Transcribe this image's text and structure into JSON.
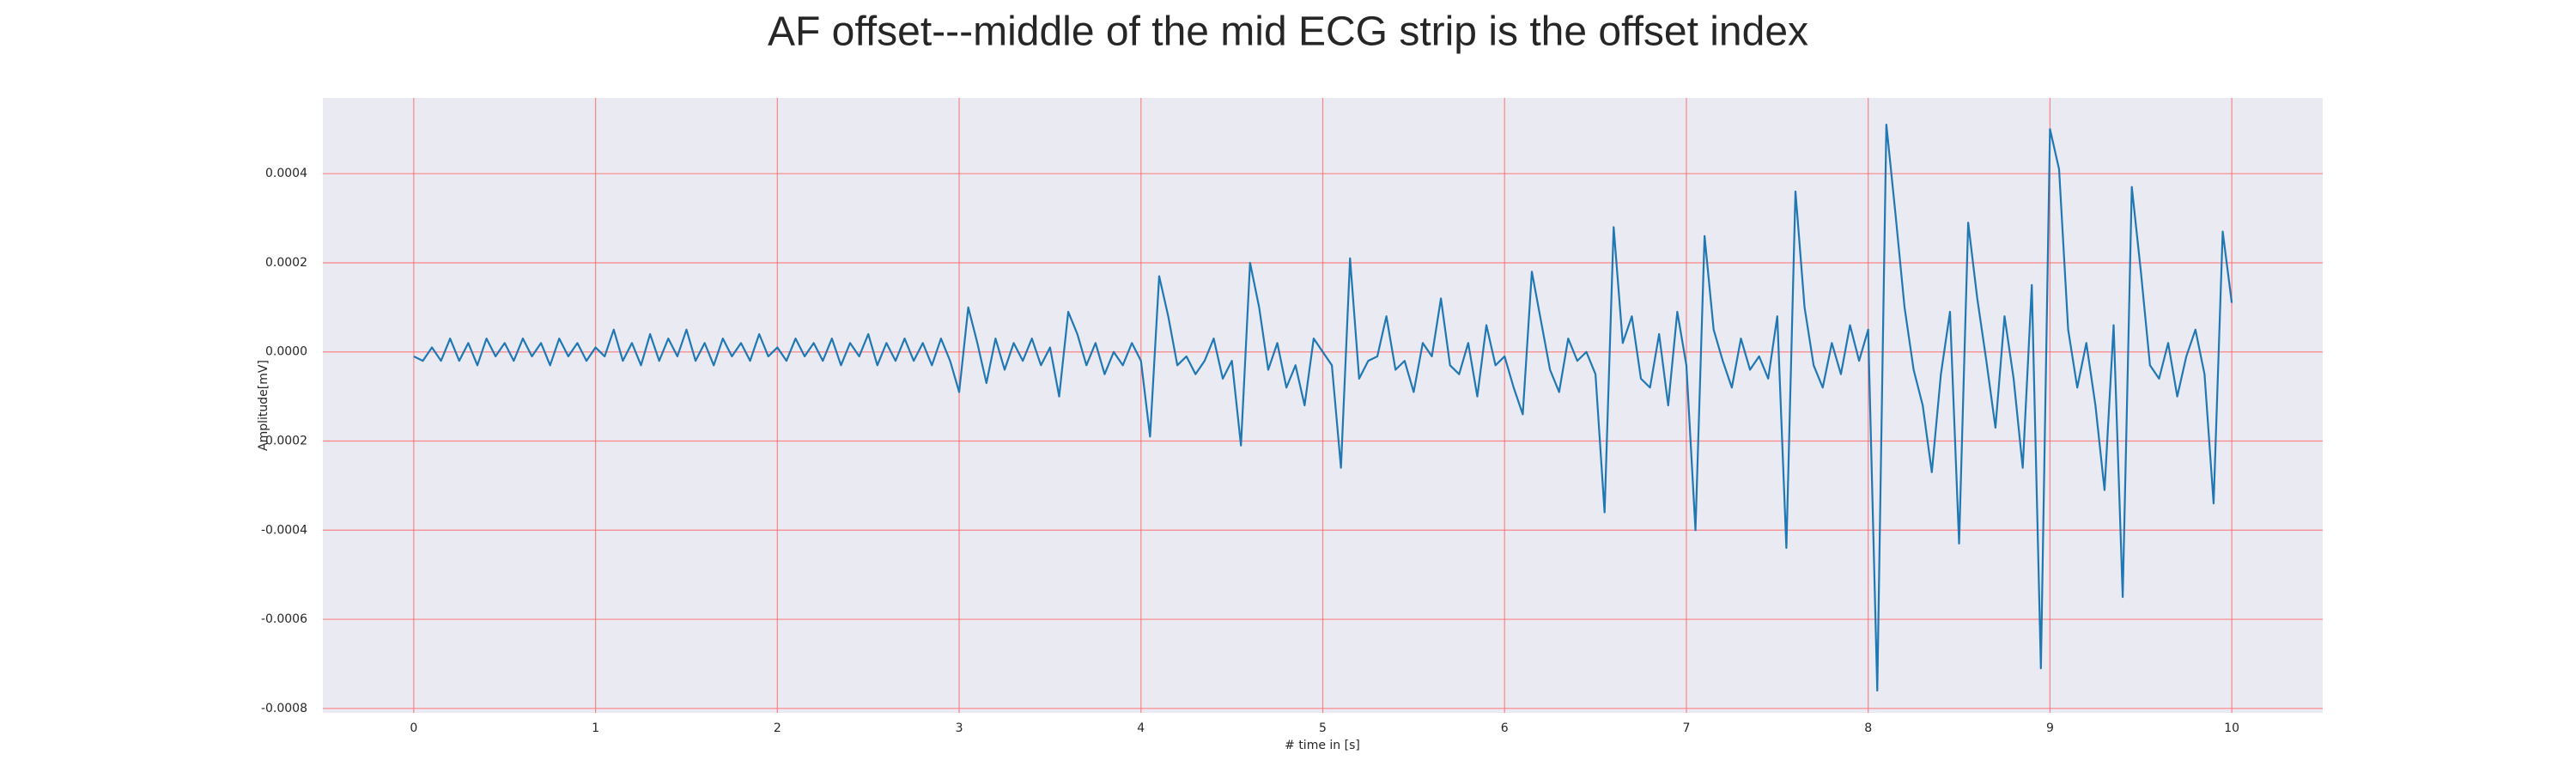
{
  "chart_data": {
    "type": "line",
    "title": "AF offset---middle of the mid ECG strip is the offset index",
    "xlabel": "# time in [s]",
    "ylabel": "Amplitude[mV]",
    "color": "#1f77b4",
    "grid": true,
    "grid_color": "#ff6b6b",
    "background": "#eaeaf2",
    "xlim": [
      -0.5,
      10.5
    ],
    "xticks": [
      0,
      1,
      2,
      3,
      4,
      5,
      6,
      7,
      8,
      9,
      10
    ],
    "ylim": [
      -0.00081,
      0.00057
    ],
    "yticks": [
      -0.0008,
      -0.0006,
      -0.0004,
      -0.0002,
      {
        "value": 0,
        "label": "0.0000"
      },
      0.0002,
      0.0004
    ],
    "x": [
      0,
      0.05,
      0.1,
      0.15,
      0.2,
      0.25,
      0.3,
      0.35,
      0.4,
      0.45,
      0.5,
      0.55,
      0.6,
      0.65,
      0.7,
      0.75,
      0.8,
      0.85,
      0.9,
      0.95,
      1,
      1.05,
      1.1,
      1.15,
      1.2,
      1.25,
      1.3,
      1.35,
      1.4,
      1.45,
      1.5,
      1.55,
      1.6,
      1.65,
      1.7,
      1.75,
      1.8,
      1.85,
      1.9,
      1.95,
      2,
      2.05,
      2.1,
      2.15,
      2.2,
      2.25,
      2.3,
      2.35,
      2.4,
      2.45,
      2.5,
      2.55,
      2.6,
      2.65,
      2.7,
      2.75,
      2.8,
      2.85,
      2.9,
      2.95,
      3,
      3.05,
      3.1,
      3.15,
      3.2,
      3.25,
      3.3,
      3.35,
      3.4,
      3.45,
      3.5,
      3.55,
      3.6,
      3.65,
      3.7,
      3.75,
      3.8,
      3.85,
      3.9,
      3.95,
      4,
      4.05,
      4.1,
      4.15,
      4.2,
      4.25,
      4.3,
      4.35,
      4.4,
      4.45,
      4.5,
      4.55,
      4.6,
      4.65,
      4.7,
      4.75,
      4.8,
      4.85,
      4.9,
      4.95,
      5,
      5.05,
      5.1,
      5.15,
      5.2,
      5.25,
      5.3,
      5.35,
      5.4,
      5.45,
      5.5,
      5.55,
      5.6,
      5.65,
      5.7,
      5.75,
      5.8,
      5.85,
      5.9,
      5.95,
      6,
      6.05,
      6.1,
      6.15,
      6.2,
      6.25,
      6.3,
      6.35,
      6.4,
      6.45,
      6.5,
      6.55,
      6.6,
      6.65,
      6.7,
      6.75,
      6.8,
      6.85,
      6.9,
      6.95,
      7,
      7.05,
      7.1,
      7.15,
      7.2,
      7.25,
      7.3,
      7.35,
      7.4,
      7.45,
      7.5,
      7.55,
      7.6,
      7.65,
      7.7,
      7.75,
      7.8,
      7.85,
      7.9,
      7.95,
      8,
      8.05,
      8.1,
      8.15,
      8.2,
      8.25,
      8.3,
      8.35,
      8.4,
      8.45,
      8.5,
      8.55,
      8.6,
      8.65,
      8.7,
      8.75,
      8.8,
      8.85,
      8.9,
      8.95,
      9,
      9.05,
      9.1,
      9.15,
      9.2,
      9.25,
      9.3,
      9.35,
      9.4,
      9.45,
      9.5,
      9.55,
      9.6,
      9.65,
      9.7,
      9.75,
      9.8,
      9.85,
      9.9,
      9.95,
      10
    ],
    "values": [
      -1e-05,
      -2e-05,
      1e-05,
      -2e-05,
      3e-05,
      -2e-05,
      2e-05,
      -3e-05,
      3e-05,
      -1e-05,
      2e-05,
      -2e-05,
      3e-05,
      -1e-05,
      2e-05,
      -3e-05,
      3e-05,
      -1e-05,
      2e-05,
      -2e-05,
      1e-05,
      -1e-05,
      5e-05,
      -2e-05,
      2e-05,
      -3e-05,
      4e-05,
      -2e-05,
      3e-05,
      -1e-05,
      5e-05,
      -2e-05,
      2e-05,
      -3e-05,
      3e-05,
      -1e-05,
      2e-05,
      -2e-05,
      4e-05,
      -1e-05,
      1e-05,
      -2e-05,
      3e-05,
      -1e-05,
      2e-05,
      -2e-05,
      3e-05,
      -3e-05,
      2e-05,
      -1e-05,
      4e-05,
      -3e-05,
      2e-05,
      -2e-05,
      3e-05,
      -2e-05,
      2e-05,
      -3e-05,
      3e-05,
      -2e-05,
      -9e-05,
      0.0001,
      2e-05,
      -7e-05,
      3e-05,
      -4e-05,
      2e-05,
      -2e-05,
      3e-05,
      -3e-05,
      1e-05,
      -0.0001,
      9e-05,
      4e-05,
      -3e-05,
      2e-05,
      -5e-05,
      0,
      -3e-05,
      2e-05,
      -2e-05,
      -0.00019,
      0.00017,
      8e-05,
      -3e-05,
      -1e-05,
      -5e-05,
      -2e-05,
      3e-05,
      -6e-05,
      -2e-05,
      -0.00021,
      0.0002,
      0.0001,
      -4e-05,
      2e-05,
      -8e-05,
      -3e-05,
      -0.00012,
      3e-05,
      0,
      -3e-05,
      -0.00026,
      0.00021,
      -6e-05,
      -2e-05,
      -1e-05,
      8e-05,
      -4e-05,
      -2e-05,
      -9e-05,
      2e-05,
      -1e-05,
      0.00012,
      -3e-05,
      -5e-05,
      2e-05,
      -0.0001,
      6e-05,
      -3e-05,
      -1e-05,
      -8e-05,
      -0.00014,
      0.00018,
      7e-05,
      -4e-05,
      -9e-05,
      3e-05,
      -2e-05,
      0,
      -5e-05,
      -0.00036,
      0.00028,
      2e-05,
      8e-05,
      -6e-05,
      -8e-05,
      4e-05,
      -0.00012,
      9e-05,
      -3e-05,
      -0.0004,
      0.00026,
      5e-05,
      -2e-05,
      -8e-05,
      3e-05,
      -4e-05,
      -1e-05,
      -6e-05,
      8e-05,
      -0.00044,
      0.00036,
      0.0001,
      -3e-05,
      -8e-05,
      2e-05,
      -5e-05,
      6e-05,
      -2e-05,
      5e-05,
      -0.00076,
      0.00051,
      0.00031,
      0.0001,
      -4e-05,
      -0.00012,
      -0.00027,
      -5e-05,
      9e-05,
      -0.00043,
      0.00029,
      0.00012,
      -2e-05,
      -0.00017,
      8e-05,
      -6e-05,
      -0.00026,
      0.00015,
      -0.00071,
      0.0005,
      0.00041,
      5e-05,
      -8e-05,
      2e-05,
      -0.00012,
      -0.00031,
      6e-05,
      -0.00055,
      0.00037,
      0.00018,
      -3e-05,
      -6e-05,
      2e-05,
      -0.0001,
      -1e-05,
      5e-05,
      -5e-05,
      -0.00034,
      0.00027,
      0.00011
    ]
  }
}
